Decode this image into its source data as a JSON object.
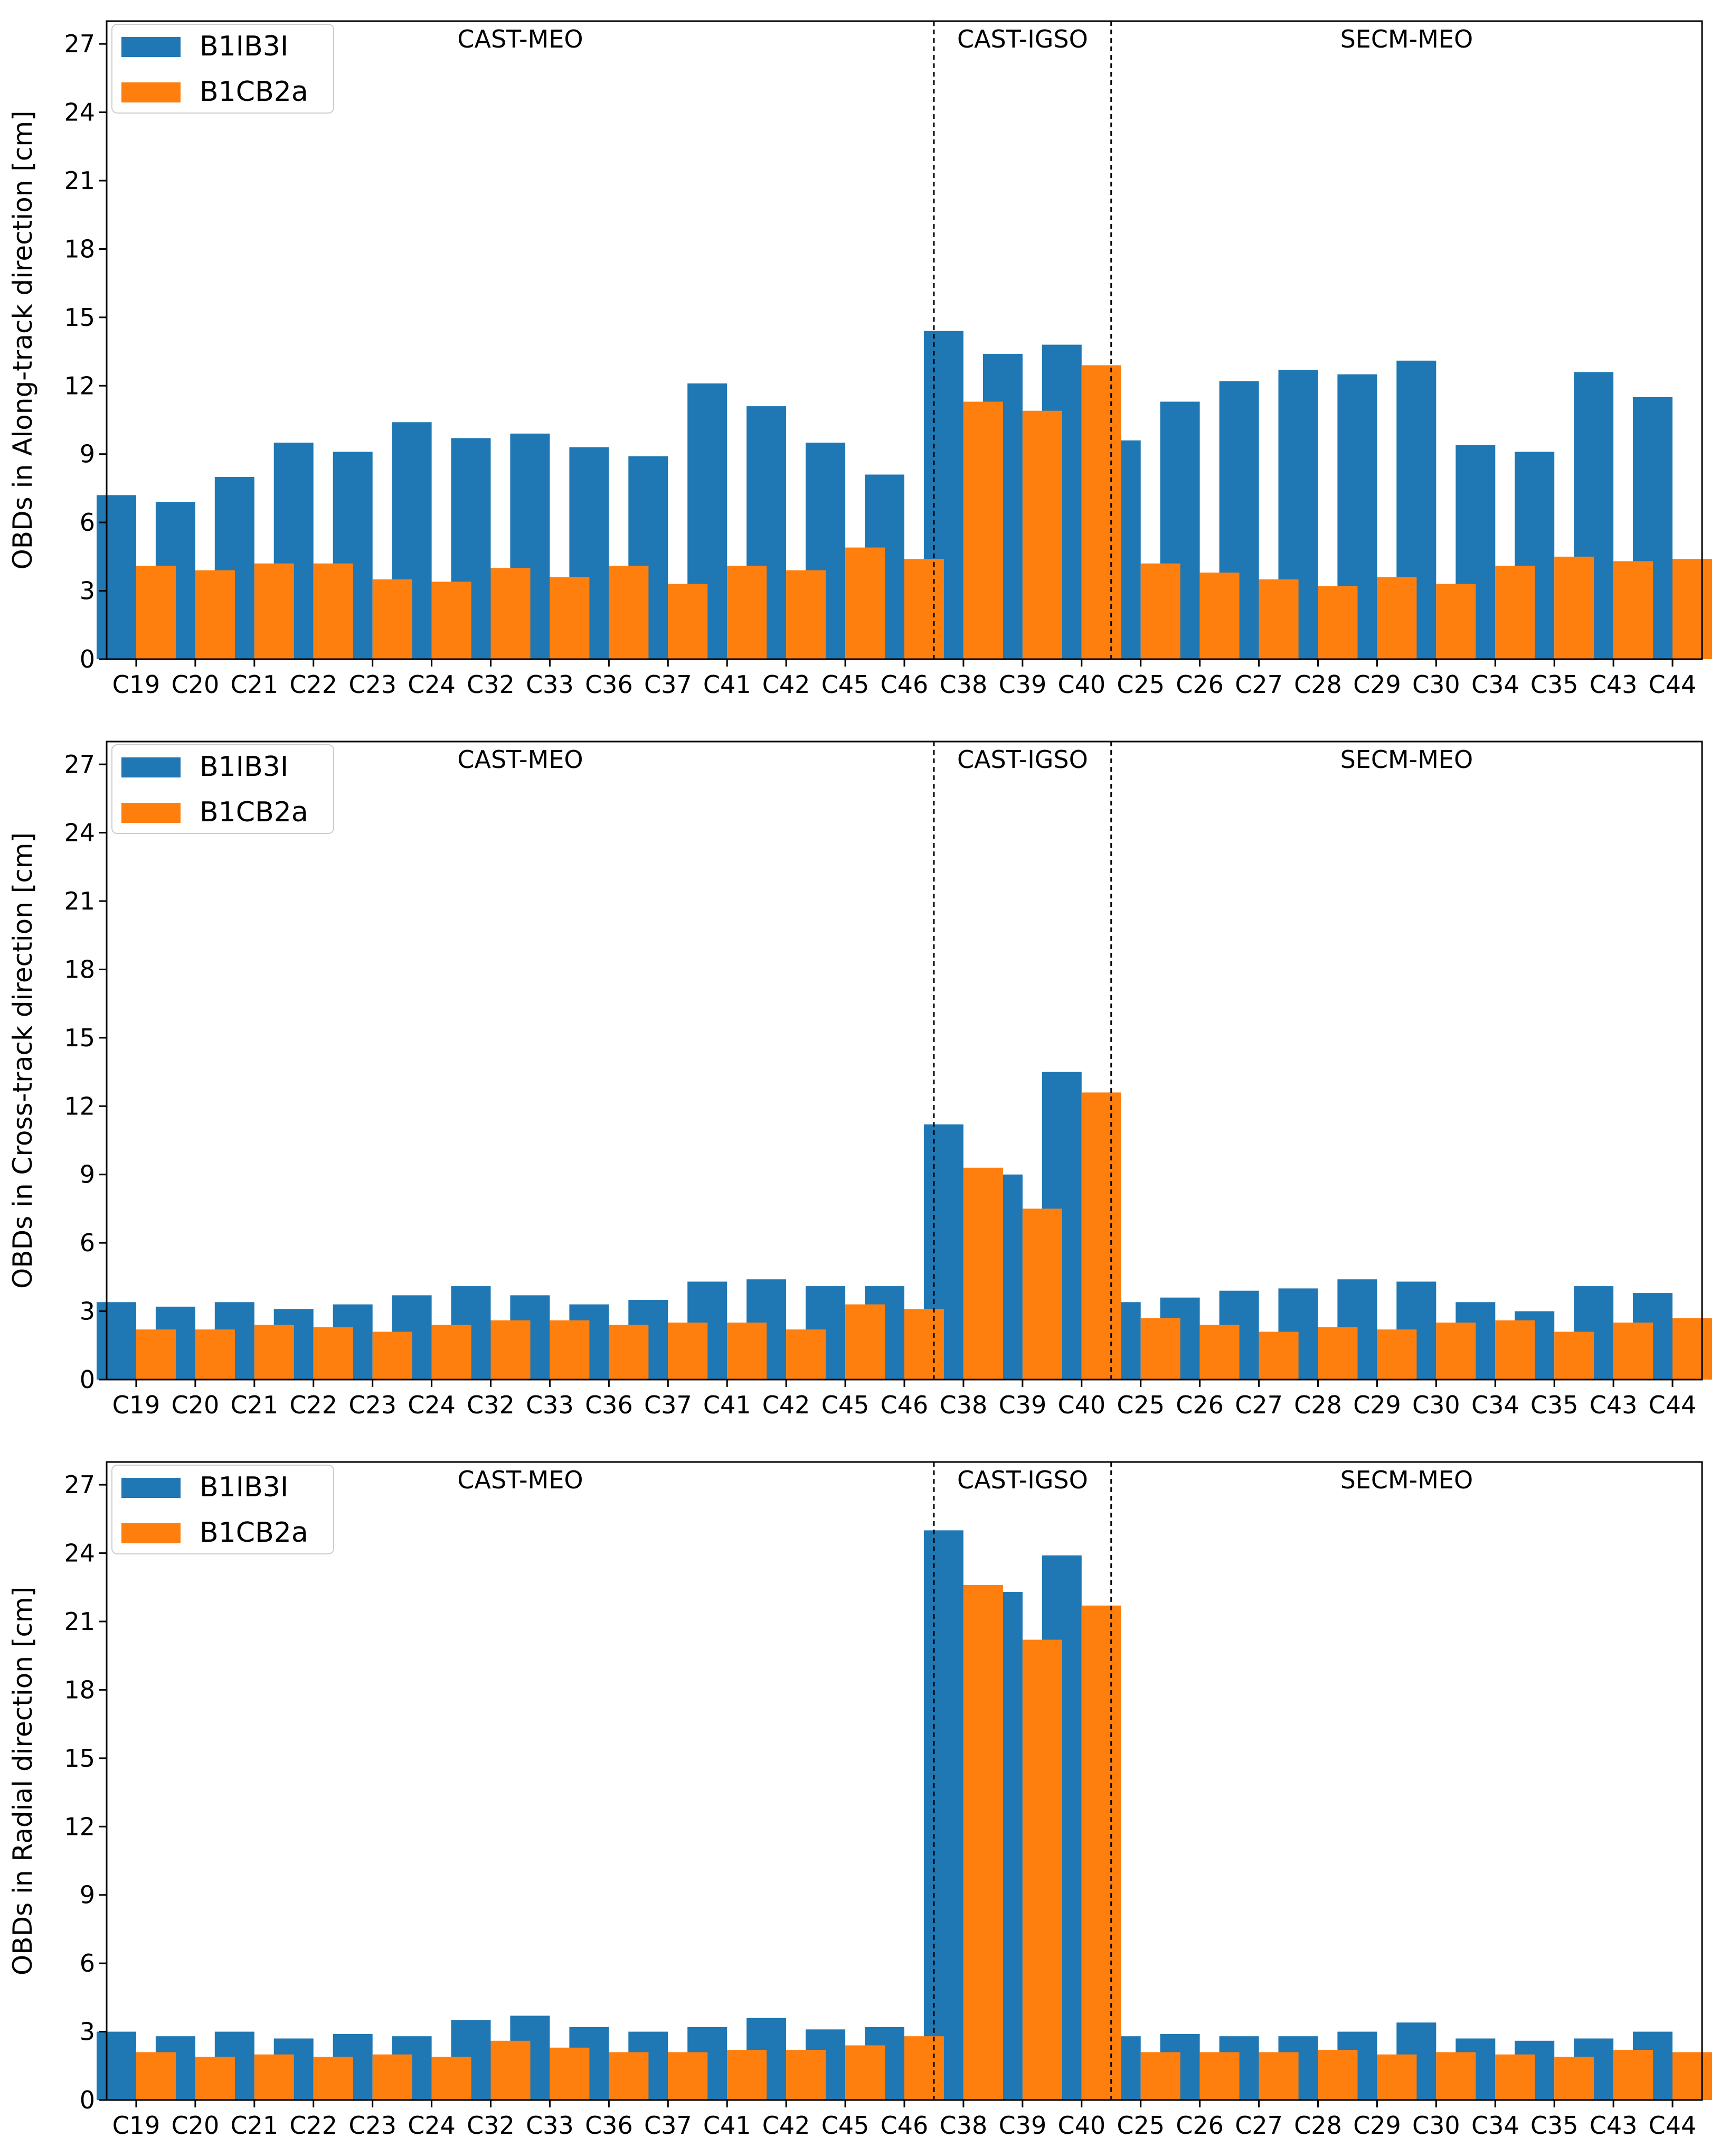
{
  "figure": {
    "colors": {
      "B1IB3I": "#1f77b4",
      "B1CB2a": "#ff7f0e",
      "axis": "#000000",
      "divider": "#000000"
    }
  },
  "chart_data": [
    {
      "type": "bar",
      "title": "",
      "xlabel": "",
      "ylabel": "OBDs in Along-track direction [cm]",
      "ylim": [
        0,
        28
      ],
      "yticks": [
        0,
        3,
        6,
        9,
        12,
        15,
        18,
        21,
        24,
        27
      ],
      "legend_position": "top-left",
      "categories": [
        "C19",
        "C20",
        "C21",
        "C22",
        "C23",
        "C24",
        "C32",
        "C33",
        "C36",
        "C37",
        "C41",
        "C42",
        "C45",
        "C46",
        "C38",
        "C39",
        "C40",
        "C25",
        "C26",
        "C27",
        "C28",
        "C29",
        "C30",
        "C34",
        "C35",
        "C43",
        "C44"
      ],
      "groups": [
        {
          "label": "CAST-MEO",
          "start": 0,
          "end": 13
        },
        {
          "label": "CAST-IGSO",
          "start": 14,
          "end": 16
        },
        {
          "label": "SECM-MEO",
          "start": 17,
          "end": 26
        }
      ],
      "series": [
        {
          "name": "B1IB3I",
          "values": [
            7.2,
            6.9,
            8.0,
            9.5,
            9.1,
            10.4,
            9.7,
            9.9,
            9.3,
            8.9,
            12.1,
            11.1,
            9.5,
            8.1,
            14.4,
            13.4,
            13.8,
            9.6,
            11.3,
            12.2,
            12.7,
            12.5,
            13.1,
            9.4,
            9.1,
            12.6,
            11.5
          ]
        },
        {
          "name": "B1CB2a",
          "values": [
            4.1,
            3.9,
            4.2,
            4.2,
            3.5,
            3.4,
            4.0,
            3.6,
            4.1,
            3.3,
            4.1,
            3.9,
            4.9,
            4.4,
            11.3,
            10.9,
            12.9,
            4.2,
            3.8,
            3.5,
            3.2,
            3.6,
            3.3,
            4.1,
            4.5,
            4.3,
            4.4
          ]
        }
      ]
    },
    {
      "type": "bar",
      "title": "",
      "xlabel": "",
      "ylabel": "OBDs in Cross-track direction [cm]",
      "ylim": [
        0,
        28
      ],
      "yticks": [
        0,
        3,
        6,
        9,
        12,
        15,
        18,
        21,
        24,
        27
      ],
      "legend_position": "top-left",
      "categories": [
        "C19",
        "C20",
        "C21",
        "C22",
        "C23",
        "C24",
        "C32",
        "C33",
        "C36",
        "C37",
        "C41",
        "C42",
        "C45",
        "C46",
        "C38",
        "C39",
        "C40",
        "C25",
        "C26",
        "C27",
        "C28",
        "C29",
        "C30",
        "C34",
        "C35",
        "C43",
        "C44"
      ],
      "groups": [
        {
          "label": "CAST-MEO",
          "start": 0,
          "end": 13
        },
        {
          "label": "CAST-IGSO",
          "start": 14,
          "end": 16
        },
        {
          "label": "SECM-MEO",
          "start": 17,
          "end": 26
        }
      ],
      "series": [
        {
          "name": "B1IB3I",
          "values": [
            3.4,
            3.2,
            3.4,
            3.1,
            3.3,
            3.7,
            4.1,
            3.7,
            3.3,
            3.5,
            4.3,
            4.4,
            4.1,
            4.1,
            11.2,
            9.0,
            13.5,
            3.4,
            3.6,
            3.9,
            4.0,
            4.4,
            4.3,
            3.4,
            3.0,
            4.1,
            3.8
          ]
        },
        {
          "name": "B1CB2a",
          "values": [
            2.2,
            2.2,
            2.4,
            2.3,
            2.1,
            2.4,
            2.6,
            2.6,
            2.4,
            2.5,
            2.5,
            2.2,
            3.3,
            3.1,
            9.3,
            7.5,
            12.6,
            2.7,
            2.4,
            2.1,
            2.3,
            2.2,
            2.5,
            2.6,
            2.1,
            2.5,
            2.7
          ]
        }
      ]
    },
    {
      "type": "bar",
      "title": "",
      "xlabel": "",
      "ylabel": "OBDs in Radial direction [cm]",
      "ylim": [
        0,
        28
      ],
      "yticks": [
        0,
        3,
        6,
        9,
        12,
        15,
        18,
        21,
        24,
        27
      ],
      "legend_position": "top-left",
      "categories": [
        "C19",
        "C20",
        "C21",
        "C22",
        "C23",
        "C24",
        "C32",
        "C33",
        "C36",
        "C37",
        "C41",
        "C42",
        "C45",
        "C46",
        "C38",
        "C39",
        "C40",
        "C25",
        "C26",
        "C27",
        "C28",
        "C29",
        "C30",
        "C34",
        "C35",
        "C43",
        "C44"
      ],
      "groups": [
        {
          "label": "CAST-MEO",
          "start": 0,
          "end": 13
        },
        {
          "label": "CAST-IGSO",
          "start": 14,
          "end": 16
        },
        {
          "label": "SECM-MEO",
          "start": 17,
          "end": 26
        }
      ],
      "series": [
        {
          "name": "B1IB3I",
          "values": [
            3.0,
            2.8,
            3.0,
            2.7,
            2.9,
            2.8,
            3.5,
            3.7,
            3.2,
            3.0,
            3.2,
            3.6,
            3.1,
            3.2,
            25.0,
            22.3,
            23.9,
            2.8,
            2.9,
            2.8,
            2.8,
            3.0,
            3.4,
            2.7,
            2.6,
            2.7,
            3.0
          ]
        },
        {
          "name": "B1CB2a",
          "values": [
            2.1,
            1.9,
            2.0,
            1.9,
            2.0,
            1.9,
            2.6,
            2.3,
            2.1,
            2.1,
            2.2,
            2.2,
            2.4,
            2.8,
            22.6,
            20.2,
            21.7,
            2.1,
            2.1,
            2.1,
            2.2,
            2.0,
            2.1,
            2.0,
            1.9,
            2.2,
            2.1
          ]
        }
      ]
    }
  ]
}
